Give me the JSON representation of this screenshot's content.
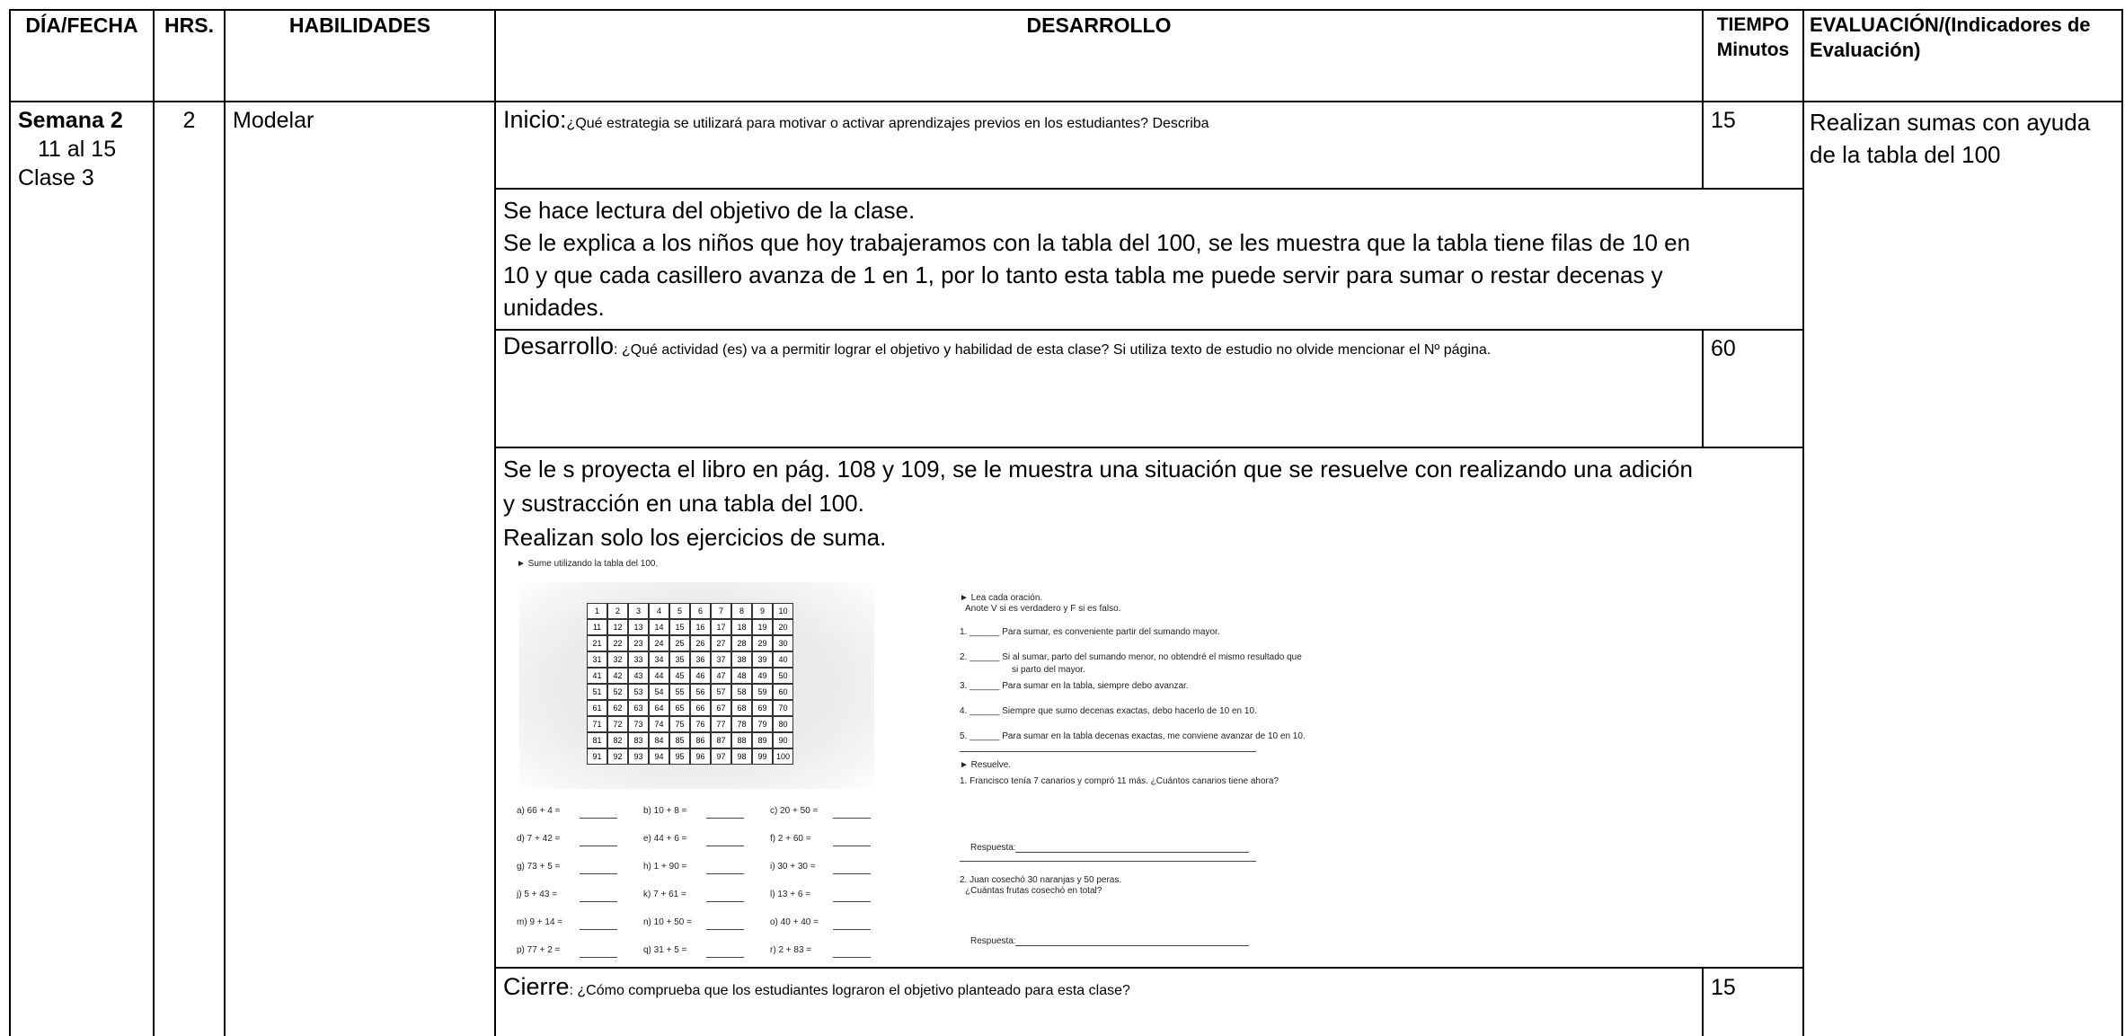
{
  "table": {
    "headers": [
      "DÍA/FECHA",
      "HRS.",
      "HABILIDADES",
      "DESARROLLO",
      "TIEMPO Minutos",
      "EVALUACIÓN/(Indicadores de Evaluación)"
    ],
    "day": {
      "week": "Semana 2",
      "dates": "11 al 15",
      "class": "Clase 3"
    },
    "hours": "2",
    "skill": "Modelar",
    "evaluation": "Realizan sumas con ayuda de la tabla del 100",
    "inicio": {
      "label": "Inicio:",
      "question": "¿Qué estrategia se utilizará para motivar o activar aprendizajes previos en los estudiantes? Describa",
      "time": "15"
    },
    "inicio_text": [
      "Se hace lectura del objetivo de la clase.",
      "Se le explica a los niños que hoy trabajeramos con la tabla del 100, se les muestra que la tabla tiene filas de 10 en 10 y que cada casillero avanza de 1 en 1, por lo tanto esta tabla me puede servir para sumar o restar decenas y unidades."
    ],
    "desarrollo": {
      "label": "Desarrollo",
      "question": ": ¿Qué actividad (es) va a permitir lograr el objetivo y habilidad de esta clase? Si utiliza texto de estudio no olvide mencionar el Nº página.",
      "time": "60"
    },
    "desarrollo_text": [
      "Se le s proyecta el libro en pág. 108 y 109, se le muestra una situación que se resuelve con  realizando una adición y sustracción en una tabla del 100.",
      "Realizan solo los ejercicios de suma."
    ],
    "cierre": {
      "label": "Cierre",
      "question": ": ¿Cómo comprueba que los estudiantes lograron el objetivo planteado para esta clase?",
      "time": "15"
    }
  },
  "worksheet": {
    "instruction": "► Sume utilizando la tabla del 100.",
    "grid": [
      [
        1,
        2,
        3,
        4,
        5,
        6,
        7,
        8,
        9,
        10
      ],
      [
        11,
        12,
        13,
        14,
        15,
        16,
        17,
        18,
        19,
        20
      ],
      [
        21,
        22,
        23,
        24,
        25,
        26,
        27,
        28,
        29,
        30
      ],
      [
        31,
        32,
        33,
        34,
        35,
        36,
        37,
        38,
        39,
        40
      ],
      [
        41,
        42,
        43,
        44,
        45,
        46,
        47,
        48,
        49,
        50
      ],
      [
        51,
        52,
        53,
        54,
        55,
        56,
        57,
        58,
        59,
        60
      ],
      [
        61,
        62,
        63,
        64,
        65,
        66,
        67,
        68,
        69,
        70
      ],
      [
        71,
        72,
        73,
        74,
        75,
        76,
        77,
        78,
        79,
        80
      ],
      [
        81,
        82,
        83,
        84,
        85,
        86,
        87,
        88,
        89,
        90
      ],
      [
        91,
        92,
        93,
        94,
        95,
        96,
        97,
        98,
        99,
        100
      ]
    ],
    "exercises": [
      "a)  66 + 4  =",
      "b)  10 + 8  =",
      "c)  20 + 50  =",
      "d)  7 + 42  =",
      "e)  44 + 6  =",
      "f)  2 + 60  =",
      "g)  73 + 5  =",
      "h)  1 + 90  =",
      "i)  30 + 30  =",
      "j)  5 + 43  =",
      "k)  7 + 61  =",
      "l)  13 + 6  =",
      "m)  9 + 14  =",
      "n)  10 + 50  =",
      "o)  40 + 40  =",
      "p)  77 + 2  =",
      "q)  31 + 5  =",
      "r)  2 + 83  ="
    ],
    "true_false": {
      "instruction": "► Lea cada oración.",
      "sub": "Anote V si es verdadero y F si es falso.",
      "items": [
        "1. ______ Para sumar, es conveniente partir del sumando mayor.",
        "2. ______ Si al sumar, parto del sumando menor, no obtendré el mismo resultado que",
        "si parto del mayor.",
        "3. ______ Para sumar en la tabla, siempre debo avanzar.",
        "4. ______ Siempre que sumo decenas exactas, debo hacerlo de 10 en 10.",
        "5. ______ Para sumar en la tabla decenas exactas, me conviene avanzar de 10 en 10."
      ]
    },
    "solve": {
      "instruction": "► Resuelve.",
      "problems": [
        {
          "question": "1. Francisco tenía 7 canarios y compró 11 más. ¿Cuántos canarios tiene ahora?",
          "answer": "Respuesta:"
        },
        {
          "question": "2. Juan cosechó 30 naranjas y 50 peras.",
          "question2": "¿Cuántas frutas cosechó en total?",
          "answer": "Respuesta:"
        }
      ]
    }
  }
}
